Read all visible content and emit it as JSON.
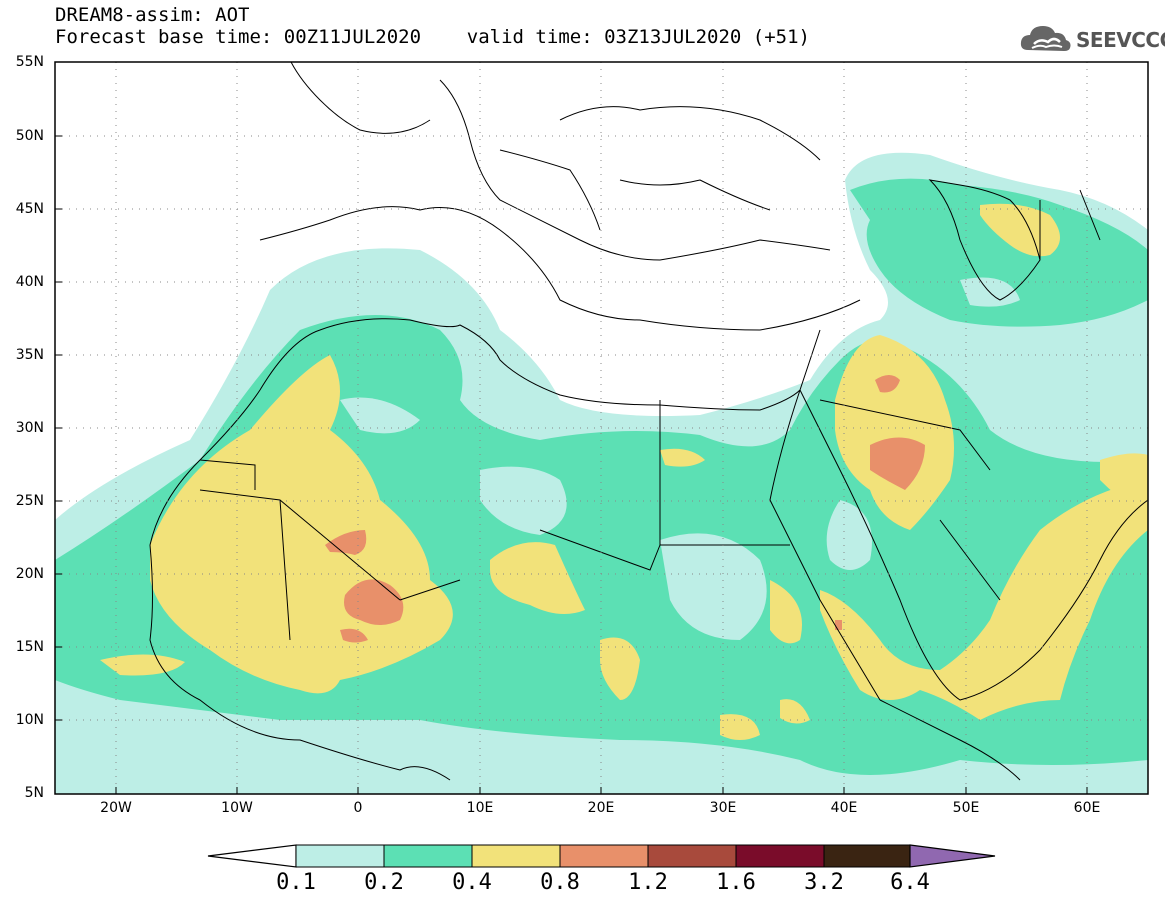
{
  "header": {
    "line1": "DREAM8-assim: AOT",
    "line2": "Forecast base time: 00Z11JUL2020    valid time: 03Z13JUL2020 (+51)"
  },
  "logo": {
    "text": "SEEVCCC",
    "icon": "cloud-icon"
  },
  "map": {
    "lat_labels": [
      "55N",
      "50N",
      "45N",
      "40N",
      "35N",
      "30N",
      "25N",
      "20N",
      "15N",
      "10N",
      "5N"
    ],
    "lon_labels": [
      "20W",
      "10W",
      "0",
      "10E",
      "20E",
      "30E",
      "40E",
      "50E",
      "60E"
    ]
  },
  "colorbar": {
    "labels": [
      "0.1",
      "0.2",
      "0.4",
      "0.8",
      "1.2",
      "1.6",
      "3.2",
      "6.4"
    ],
    "colors": [
      "#ffffff",
      "#bdeee6",
      "#5ce0b4",
      "#f2e27a",
      "#e8906a",
      "#a84a3c",
      "#7a0c2a",
      "#3a2412",
      "#9068b0"
    ]
  }
}
